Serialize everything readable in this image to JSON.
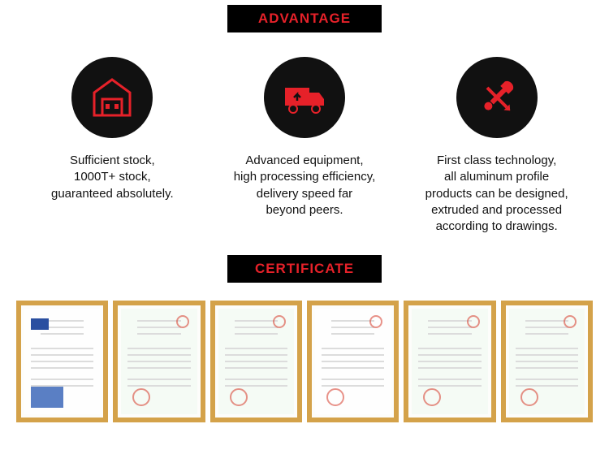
{
  "colors": {
    "header_bg": "#000000",
    "header_text": "#e62129",
    "icon_circle_bg": "#111111",
    "icon_color": "#e62129",
    "body_text": "#111111",
    "cert_frame": "#d4a24a",
    "cert_paper_a": "#fefefe",
    "cert_paper_b": "#f5fbf5",
    "cert_stamp": "#d94a3a",
    "cert_badge": "#2a4fa0",
    "cert_line": "#dcdcdc"
  },
  "typography": {
    "header_fontsize": 17,
    "body_fontsize": 15
  },
  "sections": {
    "advantage_label": "ADVANTAGE",
    "certificate_label": "CERTIFICATE"
  },
  "advantages": [
    {
      "icon": "warehouse",
      "lines": [
        "Sufficient stock,",
        "1000T+ stock,",
        "guaranteed absolutely."
      ]
    },
    {
      "icon": "truck",
      "lines": [
        "Advanced equipment,",
        "high processing efficiency,",
        "delivery speed far",
        "beyond peers."
      ]
    },
    {
      "icon": "tools",
      "lines": [
        "First class technology,",
        "all aluminum profile",
        "products can be designed,",
        "extruded and processed",
        "according to drawings."
      ]
    }
  ],
  "certificates": [
    {
      "bg": "a",
      "stamp": false,
      "badge": true
    },
    {
      "bg": "b",
      "stamp": true,
      "badge": false
    },
    {
      "bg": "b",
      "stamp": true,
      "badge": false
    },
    {
      "bg": "a",
      "stamp": true,
      "badge": false
    },
    {
      "bg": "b",
      "stamp": true,
      "badge": false
    },
    {
      "bg": "b",
      "stamp": true,
      "badge": false
    }
  ]
}
